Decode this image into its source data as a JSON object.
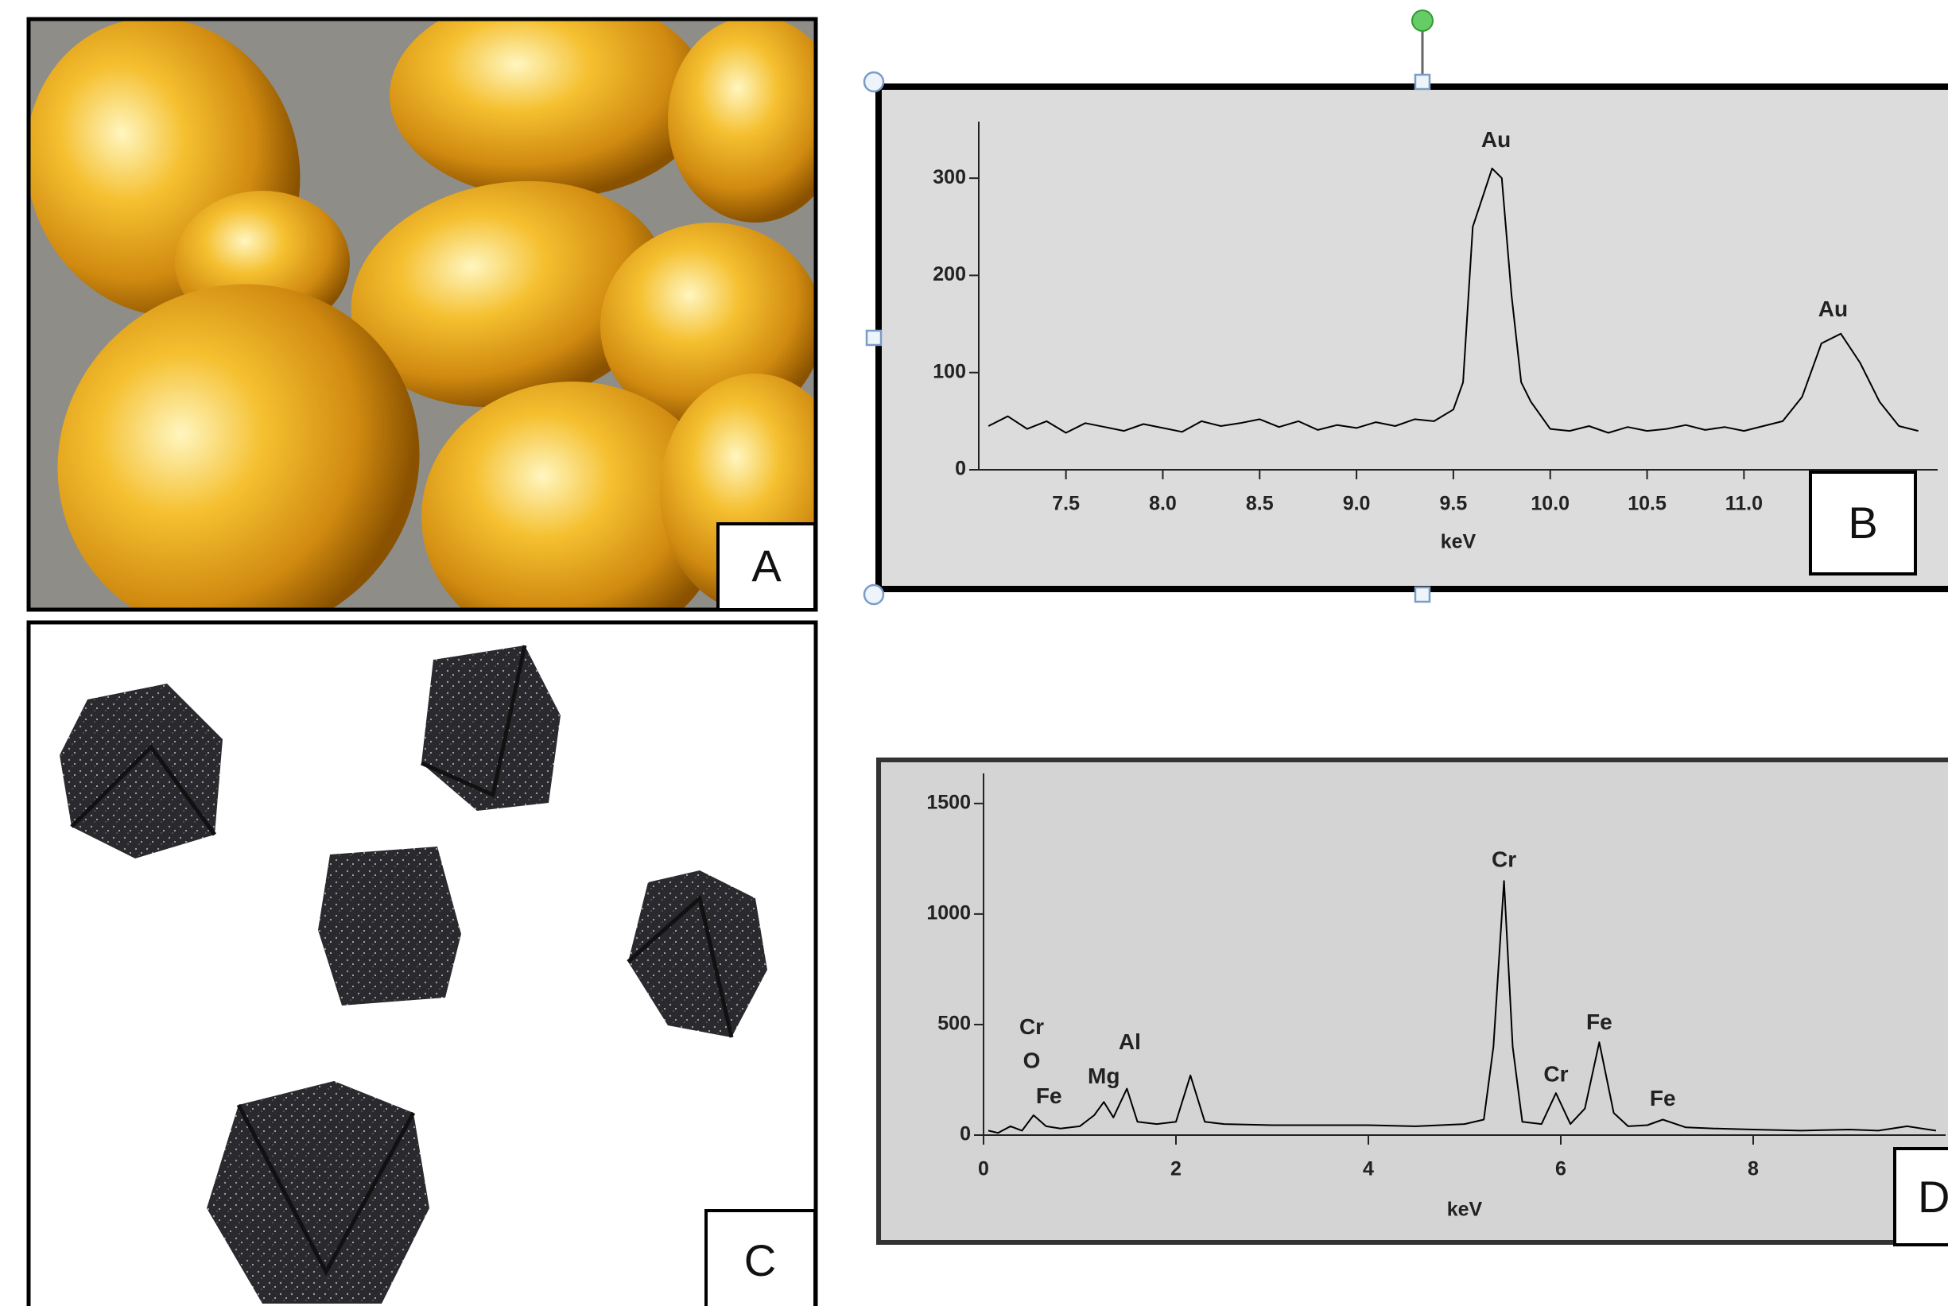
{
  "panel_labels": [
    "A",
    "B",
    "C",
    "D"
  ],
  "chart_data": [
    {
      "type": "line",
      "x_label": "keV",
      "x": [
        7.1,
        7.2,
        7.3,
        7.4,
        7.5,
        7.6,
        7.7,
        7.8,
        7.9,
        8.0,
        8.1,
        8.2,
        8.3,
        8.4,
        8.5,
        8.6,
        8.7,
        8.8,
        8.9,
        9.0,
        9.1,
        9.2,
        9.3,
        9.4,
        9.5,
        9.55,
        9.6,
        9.65,
        9.7,
        9.75,
        9.8,
        9.85,
        9.9,
        10.0,
        10.1,
        10.2,
        10.3,
        10.4,
        10.5,
        10.6,
        10.7,
        10.8,
        10.9,
        11.0,
        11.1,
        11.2,
        11.3,
        11.4,
        11.5,
        11.6,
        11.7,
        11.8,
        11.9
      ],
      "series": [
        {
          "color": "#000000",
          "values": [
            45,
            55,
            42,
            50,
            38,
            48,
            44,
            40,
            47,
            43,
            39,
            50,
            45,
            48,
            52,
            44,
            50,
            41,
            46,
            43,
            49,
            45,
            52,
            50,
            62,
            90,
            250,
            280,
            310,
            300,
            180,
            90,
            70,
            42,
            40,
            45,
            38,
            44,
            40,
            42,
            46,
            41,
            44,
            40,
            45,
            50,
            75,
            130,
            140,
            110,
            70,
            45,
            40
          ]
        }
      ],
      "xlim": [
        7.05,
        12.0
      ],
      "ylim": [
        0,
        350
      ],
      "xticks": [
        7.5,
        {
          "value": 8,
          "label": "8.0"
        },
        8.5,
        {
          "value": 9,
          "label": "9.0"
        },
        9.5,
        {
          "value": 10,
          "label": "10.0"
        },
        10.5,
        {
          "value": 11,
          "label": "11.0"
        }
      ],
      "yticks": [
        0,
        100,
        200,
        300
      ],
      "annotations": [
        {
          "text": "Au",
          "x": 9.72,
          "y": 338
        },
        {
          "text": "Au",
          "x": 11.46,
          "y": 164
        }
      ]
    },
    {
      "type": "line",
      "x_label": "keV",
      "x": [
        0.05,
        0.15,
        0.28,
        0.4,
        0.52,
        0.65,
        0.8,
        1.0,
        1.15,
        1.25,
        1.35,
        1.49,
        1.6,
        1.8,
        2.0,
        2.15,
        2.3,
        2.5,
        3.0,
        3.5,
        4.0,
        4.5,
        5.0,
        5.2,
        5.3,
        5.41,
        5.5,
        5.6,
        5.8,
        5.95,
        6.1,
        6.25,
        6.4,
        6.55,
        6.7,
        6.9,
        7.06,
        7.3,
        7.6,
        8.0,
        8.5,
        9.0,
        9.3,
        9.6,
        9.9
      ],
      "series": [
        {
          "color": "#000000",
          "values": [
            20,
            10,
            40,
            20,
            90,
            40,
            30,
            40,
            90,
            150,
            80,
            210,
            60,
            50,
            60,
            270,
            60,
            50,
            45,
            45,
            45,
            40,
            50,
            70,
            400,
            1150,
            400,
            60,
            50,
            190,
            50,
            120,
            420,
            100,
            40,
            45,
            70,
            35,
            30,
            25,
            20,
            25,
            20,
            40,
            20
          ]
        }
      ],
      "xlim": [
        0,
        10
      ],
      "ylim": [
        0,
        1600
      ],
      "xticks": [
        0,
        2,
        4,
        6,
        8
      ],
      "yticks": [
        0,
        500,
        1000,
        1500
      ],
      "annotations": [
        {
          "text": "Cr",
          "x": 0.5,
          "y": 483
        },
        {
          "text": "O",
          "x": 0.5,
          "y": 330
        },
        {
          "text": "Fe",
          "x": 0.68,
          "y": 170
        },
        {
          "text": "Mg",
          "x": 1.25,
          "y": 260
        },
        {
          "text": "Al",
          "x": 1.52,
          "y": 415
        },
        {
          "text": "Cr",
          "x": 5.41,
          "y": 1240
        },
        {
          "text": "Cr",
          "x": 5.95,
          "y": 270
        },
        {
          "text": "Fe",
          "x": 6.4,
          "y": 505
        },
        {
          "text": "Fe",
          "x": 7.06,
          "y": 160
        }
      ]
    }
  ]
}
